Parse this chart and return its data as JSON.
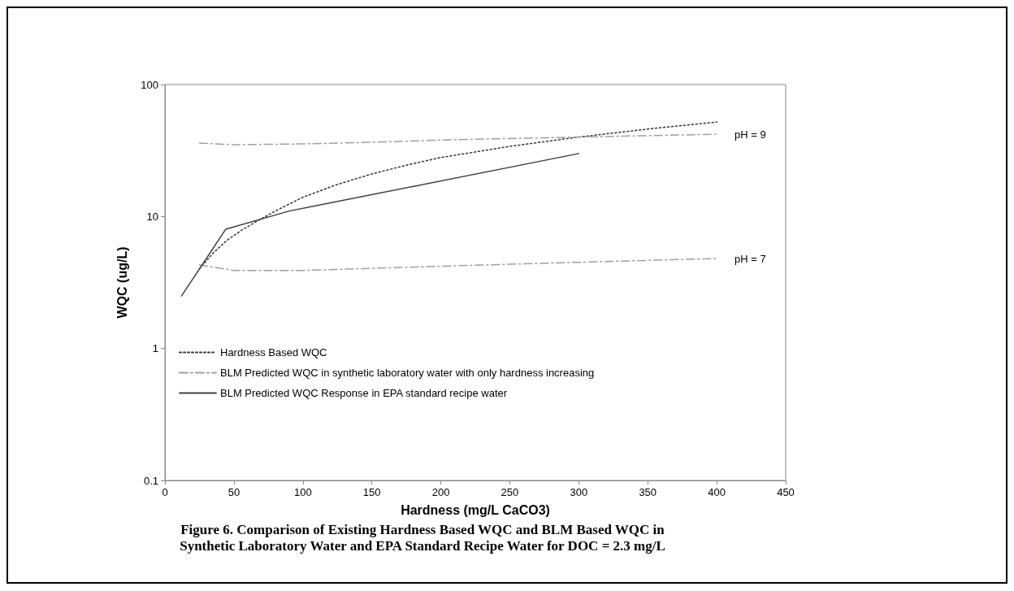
{
  "chart_data": {
    "type": "line",
    "title": "Figure 6. Comparison of Existing Hardness Based WQC and BLM Based WQC in Synthetic Laboratory Water and EPA Standard Recipe Water for DOC = 2.3 mg/L",
    "xlabel": "Hardness (mg/L CaCO3)",
    "ylabel": "WQC (ug/L)",
    "series": [
      {
        "name": "Hardness Based WQC",
        "color": "#333333",
        "line_style": "dotted",
        "x": [
          25,
          35,
          45,
          55,
          65,
          80,
          100,
          125,
          150,
          175,
          200,
          250,
          300,
          350,
          400
        ],
        "values": [
          4,
          5.3,
          6.6,
          7.8,
          9,
          11,
          14,
          17.5,
          21,
          24.5,
          28,
          34,
          40,
          46,
          52
        ]
      },
      {
        "name": "BLM Predicted WQC in synthetic laboratory water with only hardness increasing",
        "color": "#a0a0a0",
        "line_style": "dashed",
        "x": [
          25,
          50,
          100,
          150,
          200,
          250,
          300,
          350,
          400
        ],
        "values": [
          36,
          35,
          35.5,
          36.5,
          38,
          39,
          40,
          41,
          42
        ]
      },
      {
        "color": "#a0a0a0",
        "line_style": "dashed",
        "x": [
          25,
          50,
          100,
          150,
          200,
          250,
          300,
          350,
          400
        ],
        "values": [
          4.3,
          3.9,
          3.9,
          4.05,
          4.2,
          4.35,
          4.5,
          4.65,
          4.8
        ]
      },
      {
        "name": "BLM Predicted WQC Response in EPA standard recipe water",
        "color": "#404040",
        "line_style": "solid",
        "x": [
          12,
          44,
          90,
          300
        ],
        "values": [
          2.5,
          8,
          11,
          30
        ]
      }
    ],
    "annotations": [
      {
        "text": "pH = 9",
        "x": 400,
        "y": 42
      },
      {
        "text": "pH = 7",
        "x": 400,
        "y": 4.8
      }
    ],
    "xlim": [
      0,
      450
    ],
    "xticks": [
      0,
      50,
      100,
      150,
      200,
      250,
      300,
      350,
      400,
      450
    ],
    "ylim": [
      0.1,
      100
    ],
    "yticks": [
      0.1,
      1,
      10,
      100
    ],
    "log": "y",
    "legend": "bottom left",
    "marker": "none",
    "grid": false
  }
}
